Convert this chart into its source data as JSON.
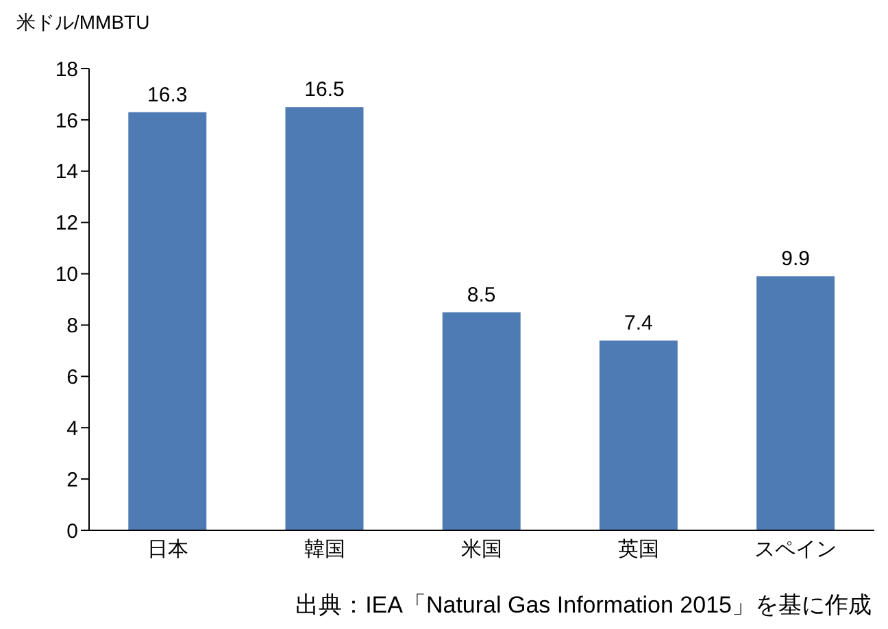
{
  "chart_data": {
    "type": "bar",
    "ylabel": "米ドル/MMBTU",
    "categories": [
      "日本",
      "韓国",
      "米国",
      "英国",
      "スペイン"
    ],
    "values": [
      16.3,
      16.5,
      8.5,
      7.4,
      9.9
    ],
    "color": "#4f7bb4",
    "ylim": [
      0,
      18
    ],
    "yticks": [
      0,
      2,
      4,
      6,
      8,
      10,
      12,
      14,
      16,
      18
    ],
    "grid": false,
    "legend": false,
    "data_labels": true,
    "annotations": [
      "出典：IEA「Natural Gas Information 2015」を基に作成"
    ]
  }
}
